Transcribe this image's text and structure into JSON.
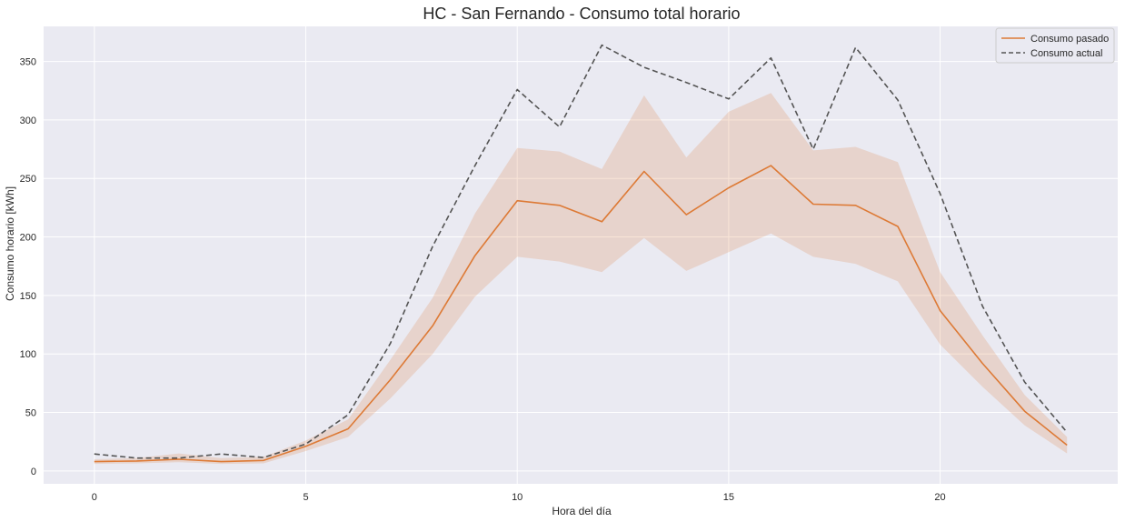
{
  "chart_data": {
    "type": "line",
    "title": "HC - San Fernando - Consumo total horario",
    "xlabel": "Hora del día",
    "ylabel": "Consumo horario [kWh]",
    "xlim": [
      -1.2,
      24.2
    ],
    "ylim": [
      -11,
      380
    ],
    "xticks": [
      0,
      5,
      10,
      15,
      20
    ],
    "yticks": [
      0,
      50,
      100,
      150,
      200,
      250,
      300,
      350
    ],
    "grid": true,
    "legend_position": "top-right",
    "x": [
      0,
      1,
      2,
      3,
      4,
      5,
      6,
      7,
      8,
      9,
      10,
      11,
      12,
      13,
      14,
      15,
      16,
      17,
      18,
      19,
      20,
      21,
      22,
      23
    ],
    "series": [
      {
        "name": "Consumo pasado",
        "color": "#dd7a36",
        "style": "solid",
        "values": [
          8,
          8.5,
          10,
          8,
          9,
          21,
          36,
          78,
          124,
          184,
          231,
          227,
          213,
          256,
          219,
          242,
          261,
          228,
          227,
          209,
          137,
          92,
          51,
          22
        ],
        "band_lower": [
          6,
          6.5,
          7.5,
          6,
          6.5,
          17,
          29,
          62,
          100,
          149,
          183,
          179,
          170,
          199,
          171,
          187,
          203,
          183,
          177,
          162,
          108,
          72,
          39,
          15
        ],
        "band_upper": [
          10,
          11,
          15,
          11,
          12,
          26,
          44,
          95,
          148,
          220,
          276,
          273,
          258,
          321,
          268,
          307,
          323,
          274,
          277,
          264,
          170,
          116,
          65,
          29
        ]
      },
      {
        "name": "Consumo actual",
        "color": "#545454",
        "style": "dashed",
        "values": [
          14.5,
          11,
          11,
          14.5,
          11.5,
          23,
          48,
          109,
          192,
          261,
          326,
          294,
          364,
          345,
          332,
          318,
          353,
          275,
          362,
          317,
          237,
          141,
          76,
          33
        ]
      }
    ],
    "colors": {
      "background": "#eaeaf2",
      "grid": "#ffffff",
      "band": "#dd7a36"
    }
  }
}
